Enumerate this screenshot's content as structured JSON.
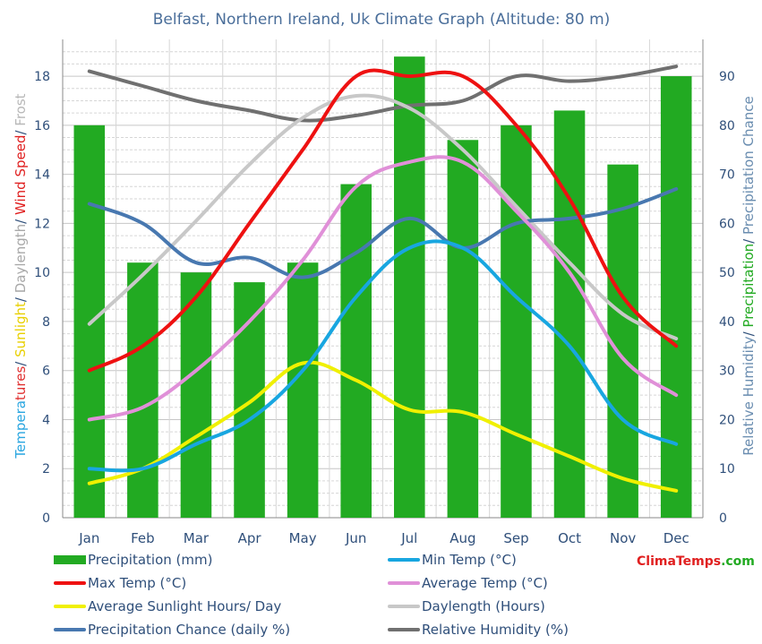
{
  "chart_data": {
    "type": "bar+line",
    "title": "Belfast, Northern Ireland, Uk Climate Graph (Altitude: 80 m)",
    "categories": [
      "Jan",
      "Feb",
      "Mar",
      "Apr",
      "May",
      "Jun",
      "Jul",
      "Aug",
      "Sep",
      "Oct",
      "Nov",
      "Dec"
    ],
    "left_axis": {
      "ylim": [
        0,
        19.5
      ],
      "ticks": [
        "0",
        "2",
        "4",
        "6",
        "8",
        "10",
        "12",
        "14",
        "16",
        "18"
      ],
      "label_parts": [
        {
          "text": "Tempera",
          "color": "#2aa6e0"
        },
        {
          "text": "tures",
          "color": "#e03030"
        },
        {
          "text": "/ ",
          "color": "#2f4f7a"
        },
        {
          "text": "Sunlight",
          "color": "#e8d000"
        },
        {
          "text": "/ ",
          "color": "#2f4f7a"
        },
        {
          "text": "Daylength",
          "color": "#a8a8a8"
        },
        {
          "text": "/ ",
          "color": "#2f4f7a"
        },
        {
          "text": "Wind Speed",
          "color": "#e02020"
        },
        {
          "text": "/ ",
          "color": "#2f4f7a"
        },
        {
          "text": "Frost",
          "color": "#b8b8b8"
        }
      ]
    },
    "right_axis": {
      "ylim": [
        0,
        97.5
      ],
      "ticks": [
        "0",
        "10",
        "20",
        "30",
        "40",
        "50",
        "60",
        "70",
        "80",
        "90"
      ],
      "label_parts": [
        {
          "text": "Relative Humidity",
          "color": "#6a8db0"
        },
        {
          "text": "/ ",
          "color": "#2f4f7a"
        },
        {
          "text": "Precipitation",
          "color": "#22aa22"
        },
        {
          "text": "/ ",
          "color": "#2f4f7a"
        },
        {
          "text": "Precipitation Chance",
          "color": "#6a8db0"
        }
      ]
    },
    "series": [
      {
        "name": "Precipitation (mm)",
        "type": "bar",
        "axis": "left",
        "color": "#22aa22",
        "values": [
          16,
          10.4,
          10,
          9.6,
          10.4,
          13.6,
          18.8,
          15.4,
          16,
          16.6,
          14.4,
          18
        ]
      },
      {
        "name": "Min Temp (°C)",
        "type": "line",
        "axis": "left",
        "color": "#18a6e0",
        "values": [
          2,
          2,
          3,
          4,
          6,
          9,
          11,
          11,
          9,
          7,
          4,
          3
        ]
      },
      {
        "name": "Max Temp (°C)",
        "type": "line",
        "axis": "left",
        "color": "#ee1111",
        "values": [
          6,
          7,
          9,
          12,
          15,
          18,
          18,
          18,
          16,
          13,
          9,
          7
        ]
      },
      {
        "name": "Average Temp (°C)",
        "type": "line",
        "axis": "left",
        "color": "#e090d8",
        "values": [
          4,
          4.5,
          6,
          8,
          10.5,
          13.5,
          14.5,
          14.5,
          12.5,
          10,
          6.5,
          5
        ]
      },
      {
        "name": "Average Sunlight Hours/ Day",
        "type": "line",
        "axis": "left",
        "color": "#f0f000",
        "values": [
          1.4,
          2,
          3.3,
          4.7,
          6.3,
          5.6,
          4.4,
          4.3,
          3.4,
          2.5,
          1.6,
          1.1
        ]
      },
      {
        "name": "Daylength (Hours)",
        "type": "line",
        "axis": "left",
        "color": "#c8c8c8",
        "values": [
          7.9,
          9.9,
          12.1,
          14.4,
          16.3,
          17.2,
          16.7,
          15,
          12.7,
          10.4,
          8.3,
          7.3
        ]
      },
      {
        "name": "Precipitation Chance (daily %)",
        "type": "line",
        "axis": "right",
        "color": "#4878b0",
        "values": [
          64,
          60,
          52,
          53,
          49,
          54,
          61,
          55,
          60,
          61,
          63,
          67
        ]
      },
      {
        "name": "Relative Humidity (%)",
        "type": "line",
        "axis": "right",
        "color": "#707070",
        "values": [
          91,
          88,
          85,
          83,
          81,
          82,
          84,
          85,
          90,
          89,
          90,
          92
        ]
      }
    ]
  },
  "legend": {
    "items": [
      {
        "label": "Precipitation (mm)",
        "color": "#22aa22",
        "kind": "bar"
      },
      {
        "label": "Min Temp (°C)",
        "color": "#18a6e0",
        "kind": "line"
      },
      {
        "label": "Max Temp (°C)",
        "color": "#ee1111",
        "kind": "line"
      },
      {
        "label": "Average Temp (°C)",
        "color": "#e090d8",
        "kind": "line"
      },
      {
        "label": "Average Sunlight Hours/ Day",
        "color": "#f0f000",
        "kind": "line"
      },
      {
        "label": "Daylength (Hours)",
        "color": "#c8c8c8",
        "kind": "line"
      },
      {
        "label": "Precipitation Chance (daily %)",
        "color": "#4878b0",
        "kind": "line"
      },
      {
        "label": "Relative Humidity (%)",
        "color": "#707070",
        "kind": "line"
      }
    ]
  },
  "brand": {
    "part1": "Clima",
    "part1_color": "#e02020",
    "part2": "Temps",
    "part2_color": "#e02020",
    "part3": ".com",
    "part3_color": "#22aa22"
  }
}
